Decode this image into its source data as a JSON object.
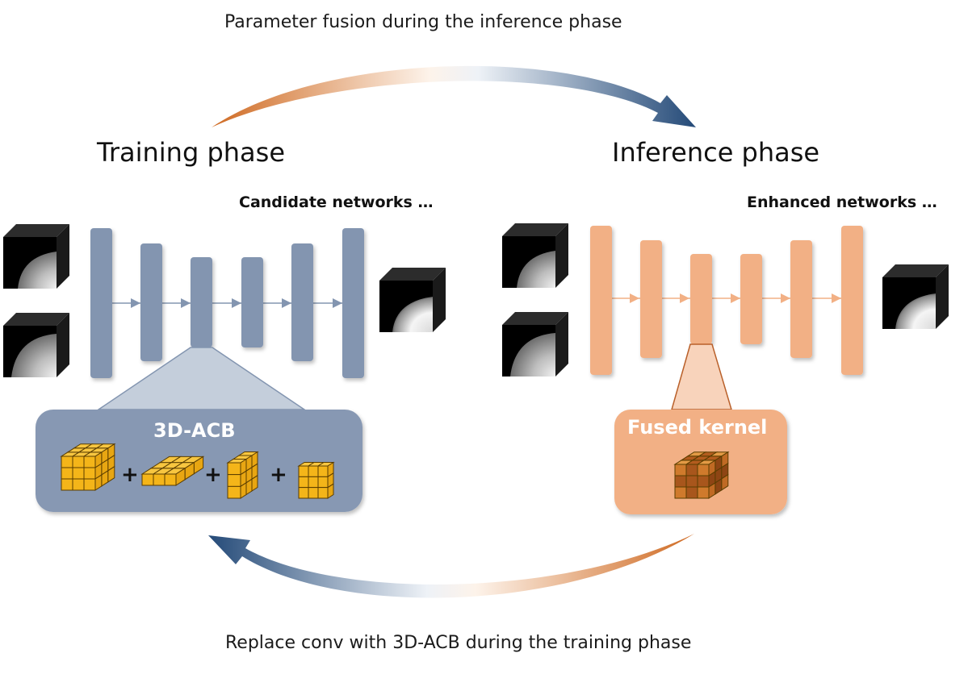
{
  "top_caption": "Parameter fusion during the inference phase",
  "bottom_caption": "Replace conv with 3D-ACB during the training phase",
  "training": {
    "title": "Training phase",
    "network_label": "Candidate networks …",
    "block_title": "3D-ACB",
    "plus_signs": [
      "+",
      "+",
      "+"
    ]
  },
  "inference": {
    "title": "Inference phase",
    "network_label": "Enhanced networks …",
    "block_title": "Fused kernel"
  },
  "colors": {
    "training_blue": "#8395b0",
    "training_box": "#8798b3",
    "inference_orange": "#f2b085",
    "arrow_orange": "#cf6a22",
    "arrow_blue": "#244a78",
    "kernel_yellow": "#f4b519",
    "fused_dark": "#a8561c"
  }
}
